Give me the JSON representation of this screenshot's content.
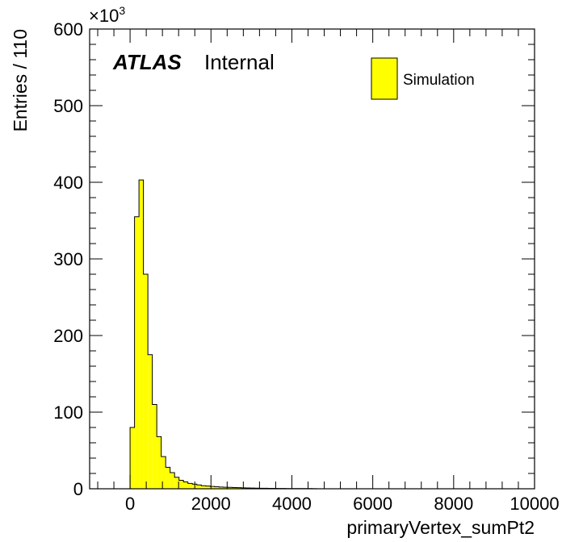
{
  "chart_data": {
    "type": "bar",
    "histogram": true,
    "title": "",
    "label_bold": "ATLAS",
    "label_normal": "Internal",
    "xlabel": "primaryVertex_sumPt2",
    "ylabel": "Entries / 110",
    "y_multiplier_base": "×10",
    "y_multiplier_exp": "3",
    "xlim": [
      -1000,
      10000
    ],
    "ylim": [
      0,
      600
    ],
    "x_ticks": [
      0,
      2000,
      4000,
      6000,
      8000,
      10000
    ],
    "y_ticks": [
      0,
      100,
      200,
      300,
      400,
      500,
      600
    ],
    "x_tick_labels": [
      "0",
      "2000",
      "4000",
      "6000",
      "8000",
      "10000"
    ],
    "y_tick_labels": [
      "0",
      "100",
      "200",
      "300",
      "400",
      "500",
      "600"
    ],
    "bin_width": 110,
    "series": [
      {
        "name": "Simulation",
        "color": "#ffff00",
        "bin_lows": [
          0,
          110,
          220,
          330,
          440,
          550,
          660,
          770,
          880,
          990,
          1100,
          1210,
          1320,
          1430,
          1540,
          1650,
          1760,
          1870,
          1980,
          2090,
          2200,
          2310,
          2420,
          2530,
          2640,
          2750,
          2860,
          2970,
          3080,
          3190,
          3300,
          3410,
          3520,
          3630,
          3740,
          3850,
          3960,
          4070,
          4180,
          4290,
          4400,
          4510
        ],
        "values": [
          80,
          355,
          403,
          280,
          175,
          110,
          68,
          42,
          28,
          21,
          15,
          11,
          9,
          7,
          6,
          5,
          4,
          3.5,
          3,
          2.6,
          2.2,
          2,
          1.8,
          1.6,
          1.4,
          1.2,
          1,
          0.9,
          0.8,
          0.7,
          0.6,
          0.5,
          0.5,
          0.4,
          0.4,
          0.3,
          0.3,
          0.3,
          0.2,
          0.2,
          0.2,
          0.1
        ]
      }
    ],
    "legend": [
      {
        "label": "Simulation",
        "color": "#ffff00"
      }
    ],
    "legend_position": "top-right",
    "grid": false
  }
}
